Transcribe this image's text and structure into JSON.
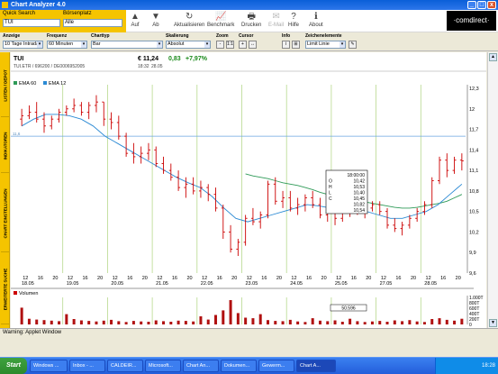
{
  "window": {
    "title": "Chart Analyzer 4.0",
    "minimize": "_",
    "maximize": "□",
    "close": "x"
  },
  "quicksearch": {
    "label": "Quick Search",
    "value": "TUI",
    "exchange_label": "Börsenplatz",
    "exchange_value": "Alle"
  },
  "toolbar": [
    {
      "id": "auf",
      "label": "Auf",
      "icon": "▲",
      "disabled": false
    },
    {
      "id": "ab",
      "label": "Ab",
      "icon": "▼",
      "disabled": false
    },
    {
      "id": "refresh",
      "label": "Aktualisieren",
      "icon": "↻",
      "disabled": false
    },
    {
      "id": "benchmark",
      "label": "Benchmark",
      "icon": "📈",
      "disabled": false
    },
    {
      "id": "print",
      "label": "Drucken",
      "icon": "🖶",
      "disabled": false
    },
    {
      "id": "email",
      "label": "E-Mail",
      "icon": "✉",
      "disabled": true
    },
    {
      "id": "help",
      "label": "Hilfe",
      "icon": "?",
      "disabled": false
    },
    {
      "id": "about",
      "label": "About",
      "icon": "ℹ",
      "disabled": false
    }
  ],
  "logo": "·comdirect·",
  "controls": {
    "anzeige": {
      "label": "Anzeige",
      "value": "10 Tage Intraday"
    },
    "frequenz": {
      "label": "Frequenz",
      "value": "60 Minuten"
    },
    "charttyp": {
      "label": "Charttyp",
      "value": "Bar"
    },
    "skalierung": {
      "label": "Skalierung",
      "value": "Absolut"
    },
    "zoom": {
      "label": "Zoom",
      "minus": "-",
      "one": "1:1"
    },
    "cursor": {
      "label": "Cursor",
      "b1": "+",
      "b2": "↔"
    },
    "info": {
      "label": "Info",
      "b1": "i",
      "b2": "⊞"
    },
    "zeichen": {
      "label": "Zeichenelemente",
      "value": "Limit Linie"
    }
  },
  "sidebar": [
    "LISTEN / DEPOT",
    "INDIKATOREN",
    "CHART EINSTELLUNGEN",
    "ERWEITERTE SUCHE"
  ],
  "stock": {
    "name": "TUI",
    "price": "€ 11,24",
    "change": "0,83",
    "change_pct": "+7,97%",
    "identifiers": "TUI.ETR / 696200 / DE0006952005",
    "time": "18:32",
    "date": "28.05"
  },
  "indicators": {
    "ema60": "EMA 60",
    "ema12": "EMA 12",
    "ema60_color": "#2e9a57",
    "ema12_color": "#2b8ad4"
  },
  "limit_line": {
    "value": 11.6,
    "label": "11,6"
  },
  "tooltip": {
    "lines": [
      "18:00:00",
      "10,42",
      "10,53",
      "10,40",
      "10,45",
      "10,82",
      "10,54"
    ],
    "keys": [
      "",
      "O",
      "H",
      "L",
      "C",
      "",
      ""
    ]
  },
  "x_axis": {
    "hours": [
      "12",
      "16",
      "20",
      "12",
      "16",
      "20",
      "12",
      "16",
      "20",
      "12",
      "16",
      "20",
      "12",
      "16",
      "20",
      "12",
      "16",
      "20",
      "12",
      "16",
      "20",
      "12",
      "16",
      "20",
      "12",
      "16",
      "20",
      "12",
      "16",
      "20"
    ],
    "dates": [
      "18.05",
      "19.05",
      "20.05",
      "21.05",
      "22.05",
      "23.05",
      "24.05",
      "25.05",
      "27.05",
      "28.05"
    ]
  },
  "volume": {
    "label": "Volumen",
    "value_box": "50.596",
    "axis_labels": [
      "1.000T",
      "800T",
      "600T",
      "400T",
      "200T",
      "0"
    ]
  },
  "chart_data": {
    "type": "bar",
    "y_range": [
      9.6,
      12.3
    ],
    "y_ticks": [
      9.6,
      9.9,
      10.2,
      10.5,
      10.8,
      11.1,
      11.4,
      11.7,
      12.0,
      12.3
    ],
    "y_tick_labels": [
      "9,6",
      "9,9",
      "10,2",
      "10,5",
      "10,8",
      "11,1",
      "11,4",
      "11,7",
      "12",
      "12,3"
    ],
    "bars": [
      {
        "x": 0,
        "o": 11.85,
        "h": 12.0,
        "l": 11.75,
        "c": 11.9
      },
      {
        "x": 1,
        "o": 11.9,
        "h": 12.05,
        "l": 11.85,
        "c": 11.95
      },
      {
        "x": 2,
        "o": 11.95,
        "h": 12.1,
        "l": 11.8,
        "c": 11.85
      },
      {
        "x": 3,
        "o": 11.85,
        "h": 11.95,
        "l": 11.65,
        "c": 11.75
      },
      {
        "x": 4,
        "o": 11.75,
        "h": 11.9,
        "l": 11.7,
        "c": 11.85
      },
      {
        "x": 5,
        "o": 11.85,
        "h": 12.0,
        "l": 11.8,
        "c": 11.95
      },
      {
        "x": 6,
        "o": 11.95,
        "h": 12.05,
        "l": 11.9,
        "c": 12.0
      },
      {
        "x": 7,
        "o": 12.0,
        "h": 12.15,
        "l": 11.95,
        "c": 12.05
      },
      {
        "x": 8,
        "o": 12.05,
        "h": 12.1,
        "l": 11.9,
        "c": 11.95
      },
      {
        "x": 9,
        "o": 11.95,
        "h": 12.1,
        "l": 11.85,
        "c": 12.05
      },
      {
        "x": 10,
        "o": 12.05,
        "h": 12.2,
        "l": 11.95,
        "c": 12.1
      },
      {
        "x": 11,
        "o": 12.1,
        "h": 12.1,
        "l": 11.75,
        "c": 11.85
      },
      {
        "x": 12,
        "o": 11.85,
        "h": 11.95,
        "l": 11.7,
        "c": 11.8
      },
      {
        "x": 13,
        "o": 11.8,
        "h": 11.9,
        "l": 11.55,
        "c": 11.6
      },
      {
        "x": 14,
        "o": 11.6,
        "h": 11.65,
        "l": 11.3,
        "c": 11.35
      },
      {
        "x": 15,
        "o": 11.35,
        "h": 11.5,
        "l": 11.2,
        "c": 11.3
      },
      {
        "x": 16,
        "o": 11.3,
        "h": 11.45,
        "l": 11.2,
        "c": 11.35
      },
      {
        "x": 17,
        "o": 11.35,
        "h": 11.5,
        "l": 11.25,
        "c": 11.4
      },
      {
        "x": 18,
        "o": 11.4,
        "h": 11.45,
        "l": 11.15,
        "c": 11.2
      },
      {
        "x": 19,
        "o": 11.2,
        "h": 11.3,
        "l": 11.05,
        "c": 11.1
      },
      {
        "x": 20,
        "o": 11.1,
        "h": 11.2,
        "l": 10.95,
        "c": 11.0
      },
      {
        "x": 21,
        "o": 11.0,
        "h": 11.1,
        "l": 10.8,
        "c": 10.85
      },
      {
        "x": 22,
        "o": 10.85,
        "h": 11.0,
        "l": 10.7,
        "c": 10.9
      },
      {
        "x": 23,
        "o": 10.9,
        "h": 11.0,
        "l": 10.75,
        "c": 10.8
      },
      {
        "x": 24,
        "o": 10.8,
        "h": 10.95,
        "l": 10.7,
        "c": 10.85
      },
      {
        "x": 25,
        "o": 10.85,
        "h": 10.9,
        "l": 10.65,
        "c": 10.75
      },
      {
        "x": 26,
        "o": 10.75,
        "h": 10.85,
        "l": 10.5,
        "c": 10.55
      },
      {
        "x": 27,
        "o": 10.55,
        "h": 10.6,
        "l": 10.1,
        "c": 10.2
      },
      {
        "x": 28,
        "o": 10.2,
        "h": 10.3,
        "l": 9.9,
        "c": 9.95
      },
      {
        "x": 29,
        "o": 9.95,
        "h": 10.1,
        "l": 9.85,
        "c": 10.05
      },
      {
        "x": 30,
        "o": 10.05,
        "h": 10.45,
        "l": 10.0,
        "c": 10.4
      },
      {
        "x": 31,
        "o": 10.4,
        "h": 10.55,
        "l": 10.3,
        "c": 10.35
      },
      {
        "x": 32,
        "o": 10.35,
        "h": 10.5,
        "l": 10.25,
        "c": 10.45
      },
      {
        "x": 33,
        "o": 10.45,
        "h": 10.95,
        "l": 10.4,
        "c": 10.9
      },
      {
        "x": 34,
        "o": 10.9,
        "h": 11.0,
        "l": 10.6,
        "c": 10.65
      },
      {
        "x": 35,
        "o": 10.65,
        "h": 10.8,
        "l": 10.55,
        "c": 10.7
      },
      {
        "x": 36,
        "o": 10.7,
        "h": 10.8,
        "l": 10.5,
        "c": 10.55
      },
      {
        "x": 37,
        "o": 10.55,
        "h": 10.7,
        "l": 10.45,
        "c": 10.6
      },
      {
        "x": 38,
        "o": 10.6,
        "h": 10.75,
        "l": 10.5,
        "c": 10.7
      },
      {
        "x": 39,
        "o": 10.7,
        "h": 10.8,
        "l": 10.55,
        "c": 10.6
      },
      {
        "x": 40,
        "o": 10.6,
        "h": 10.7,
        "l": 10.4,
        "c": 10.45
      },
      {
        "x": 41,
        "o": 10.45,
        "h": 10.6,
        "l": 10.35,
        "c": 10.5
      },
      {
        "x": 42,
        "o": 10.5,
        "h": 10.55,
        "l": 10.3,
        "c": 10.4
      },
      {
        "x": 43,
        "o": 10.4,
        "h": 10.55,
        "l": 10.35,
        "c": 10.5
      },
      {
        "x": 44,
        "o": 10.5,
        "h": 10.85,
        "l": 10.42,
        "c": 10.54
      },
      {
        "x": 45,
        "o": 10.54,
        "h": 10.6,
        "l": 10.45,
        "c": 10.5
      },
      {
        "x": 46,
        "o": 10.5,
        "h": 10.6,
        "l": 10.4,
        "c": 10.55
      },
      {
        "x": 47,
        "o": 10.55,
        "h": 10.65,
        "l": 10.5,
        "c": 10.6
      },
      {
        "x": 48,
        "o": 10.6,
        "h": 10.65,
        "l": 10.45,
        "c": 10.5
      },
      {
        "x": 49,
        "o": 10.5,
        "h": 10.55,
        "l": 10.25,
        "c": 10.3
      },
      {
        "x": 50,
        "o": 10.3,
        "h": 10.4,
        "l": 10.2,
        "c": 10.25
      },
      {
        "x": 51,
        "o": 10.25,
        "h": 10.35,
        "l": 10.15,
        "c": 10.3
      },
      {
        "x": 52,
        "o": 10.3,
        "h": 10.45,
        "l": 10.25,
        "c": 10.4
      },
      {
        "x": 53,
        "o": 10.4,
        "h": 10.55,
        "l": 10.35,
        "c": 10.5
      },
      {
        "x": 54,
        "o": 10.5,
        "h": 10.65,
        "l": 10.45,
        "c": 10.6
      },
      {
        "x": 55,
        "o": 10.6,
        "h": 11.0,
        "l": 10.55,
        "c": 10.95
      },
      {
        "x": 56,
        "o": 10.95,
        "h": 11.3,
        "l": 10.9,
        "c": 11.25
      },
      {
        "x": 57,
        "o": 11.25,
        "h": 11.35,
        "l": 11.0,
        "c": 11.1
      },
      {
        "x": 58,
        "o": 11.1,
        "h": 11.3,
        "l": 11.05,
        "c": 11.25
      },
      {
        "x": 59,
        "o": 11.25,
        "h": 11.35,
        "l": 11.1,
        "c": 11.24
      }
    ],
    "ema12": [
      11.75,
      11.85,
      11.92,
      11.92,
      11.9,
      11.85,
      11.75,
      11.6,
      11.5,
      11.4,
      11.3,
      11.2,
      11.1,
      11.0,
      10.92,
      10.85,
      10.72,
      10.55,
      10.4,
      10.35,
      10.4,
      10.45,
      10.5,
      10.55,
      10.6,
      10.58,
      10.55,
      10.5,
      10.5,
      10.5,
      10.45,
      10.4,
      10.4,
      10.45,
      10.5,
      10.6,
      10.75,
      10.9
    ],
    "ema60_start_index": 30,
    "ema60": [
      11.05,
      11.02,
      11.0,
      10.98,
      10.95,
      10.92,
      10.9,
      10.88,
      10.85,
      10.82,
      10.78,
      10.75,
      10.72,
      10.7,
      10.68,
      10.66,
      10.64,
      10.62,
      10.6,
      10.58,
      10.56,
      10.55,
      10.55,
      10.56,
      10.58,
      10.6,
      10.62,
      10.65,
      10.7,
      10.75
    ],
    "volume_values": [
      620,
      210,
      180,
      160,
      140,
      120,
      380,
      200,
      150,
      130,
      110,
      140,
      170,
      120,
      90,
      130,
      110,
      100,
      150,
      120,
      100,
      140,
      130,
      110,
      300,
      180,
      350,
      520,
      900,
      420,
      250,
      230,
      380,
      160,
      130,
      120,
      170,
      110,
      90,
      230,
      140,
      120,
      150,
      100,
      210,
      120,
      90,
      110,
      130,
      100,
      150,
      120,
      160,
      110,
      90,
      200,
      230,
      170,
      140,
      210
    ],
    "volume_max": 1000
  }
}
